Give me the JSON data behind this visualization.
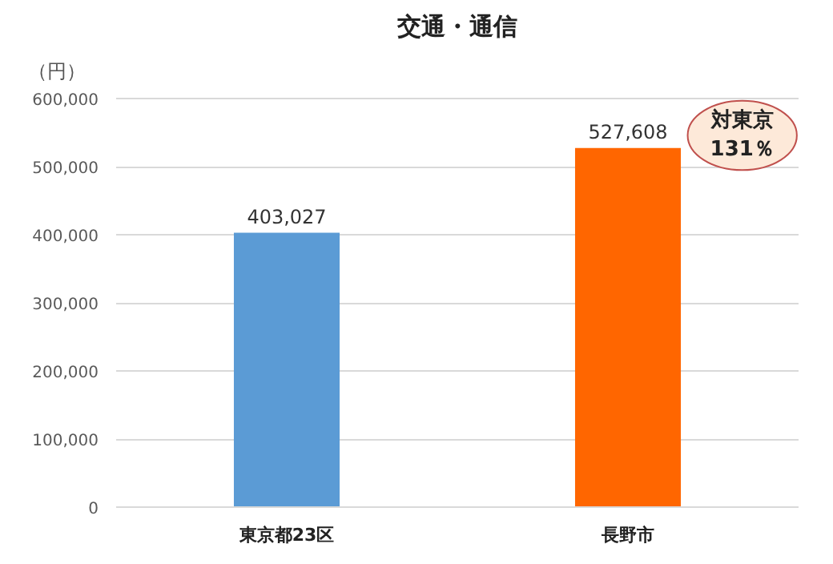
{
  "chart_data": {
    "type": "bar",
    "title": "交通・通信",
    "ylabel": "（円）",
    "categories": [
      "東京都23区",
      "長野市"
    ],
    "values": [
      403027,
      527608
    ],
    "colors": [
      "#5b9bd5",
      "#ff6600"
    ],
    "value_labels": [
      "403,027",
      "527,608"
    ],
    "ylim": [
      0,
      600000
    ],
    "yticks": [
      {
        "value": 0,
        "label": "0"
      },
      {
        "value": 100000,
        "label": "100,000"
      },
      {
        "value": 200000,
        "label": "200,000"
      },
      {
        "value": 300000,
        "label": "300,000"
      },
      {
        "value": 400000,
        "label": "400,000"
      },
      {
        "value": 500000,
        "label": "500,000"
      },
      {
        "value": 600000,
        "label": "600,000"
      }
    ],
    "grid": "y",
    "annotations": [
      "対東京\n131％"
    ]
  }
}
